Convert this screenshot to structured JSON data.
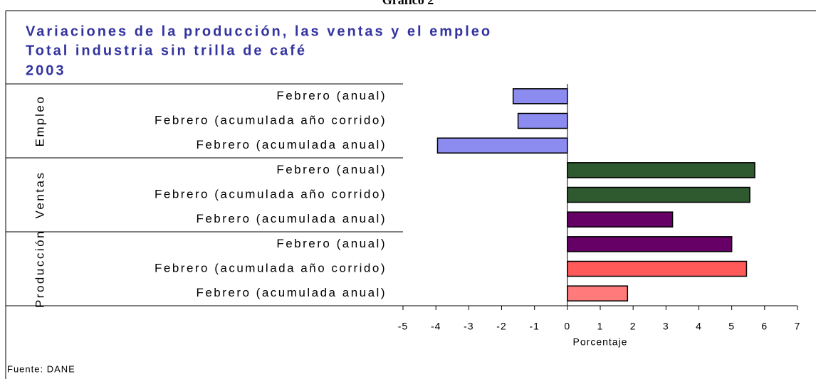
{
  "chart_data": {
    "type": "grouped_hbar",
    "heading": "Gráfico 2",
    "title": "Variaciones de la producción, las ventas y el empleo",
    "subtitle": "Total industria sin trilla de café",
    "year": "2003",
    "groups": [
      {
        "name": "Empleo",
        "categories": [
          "Febrero (anual)",
          "Febrero (acumulada año corrido)",
          "Febrero (acumulada anual)"
        ],
        "values": [
          -1.65,
          -1.5,
          -3.95
        ],
        "colors": [
          "#8c8cf0",
          "#8c8cf0",
          "#8c8cf0"
        ]
      },
      {
        "name": "Ventas",
        "categories": [
          "Febrero (anual)",
          "Febrero (acumulada año corrido)",
          "Febrero (acumulada anual)"
        ],
        "values": [
          5.7,
          5.55,
          3.2
        ],
        "colors": [
          "#2f5a30",
          "#2f5a30",
          "#660066"
        ]
      },
      {
        "name": "Producción",
        "categories": [
          "Febrero (anual)",
          "Febrero (acumulada año corrido)",
          "Febrero (acumulada anual)"
        ],
        "values": [
          5.0,
          5.45,
          1.83
        ],
        "colors": [
          "#660066",
          "#ff5a5a",
          "#ff7a7a"
        ]
      }
    ],
    "xlabel": "Porcentaje",
    "xlim": [
      -5,
      7
    ],
    "xticks": [
      -5,
      -4,
      -3,
      -2,
      -1,
      0,
      1,
      2,
      3,
      4,
      5,
      6,
      7
    ],
    "source": "Fuente: DANE"
  }
}
